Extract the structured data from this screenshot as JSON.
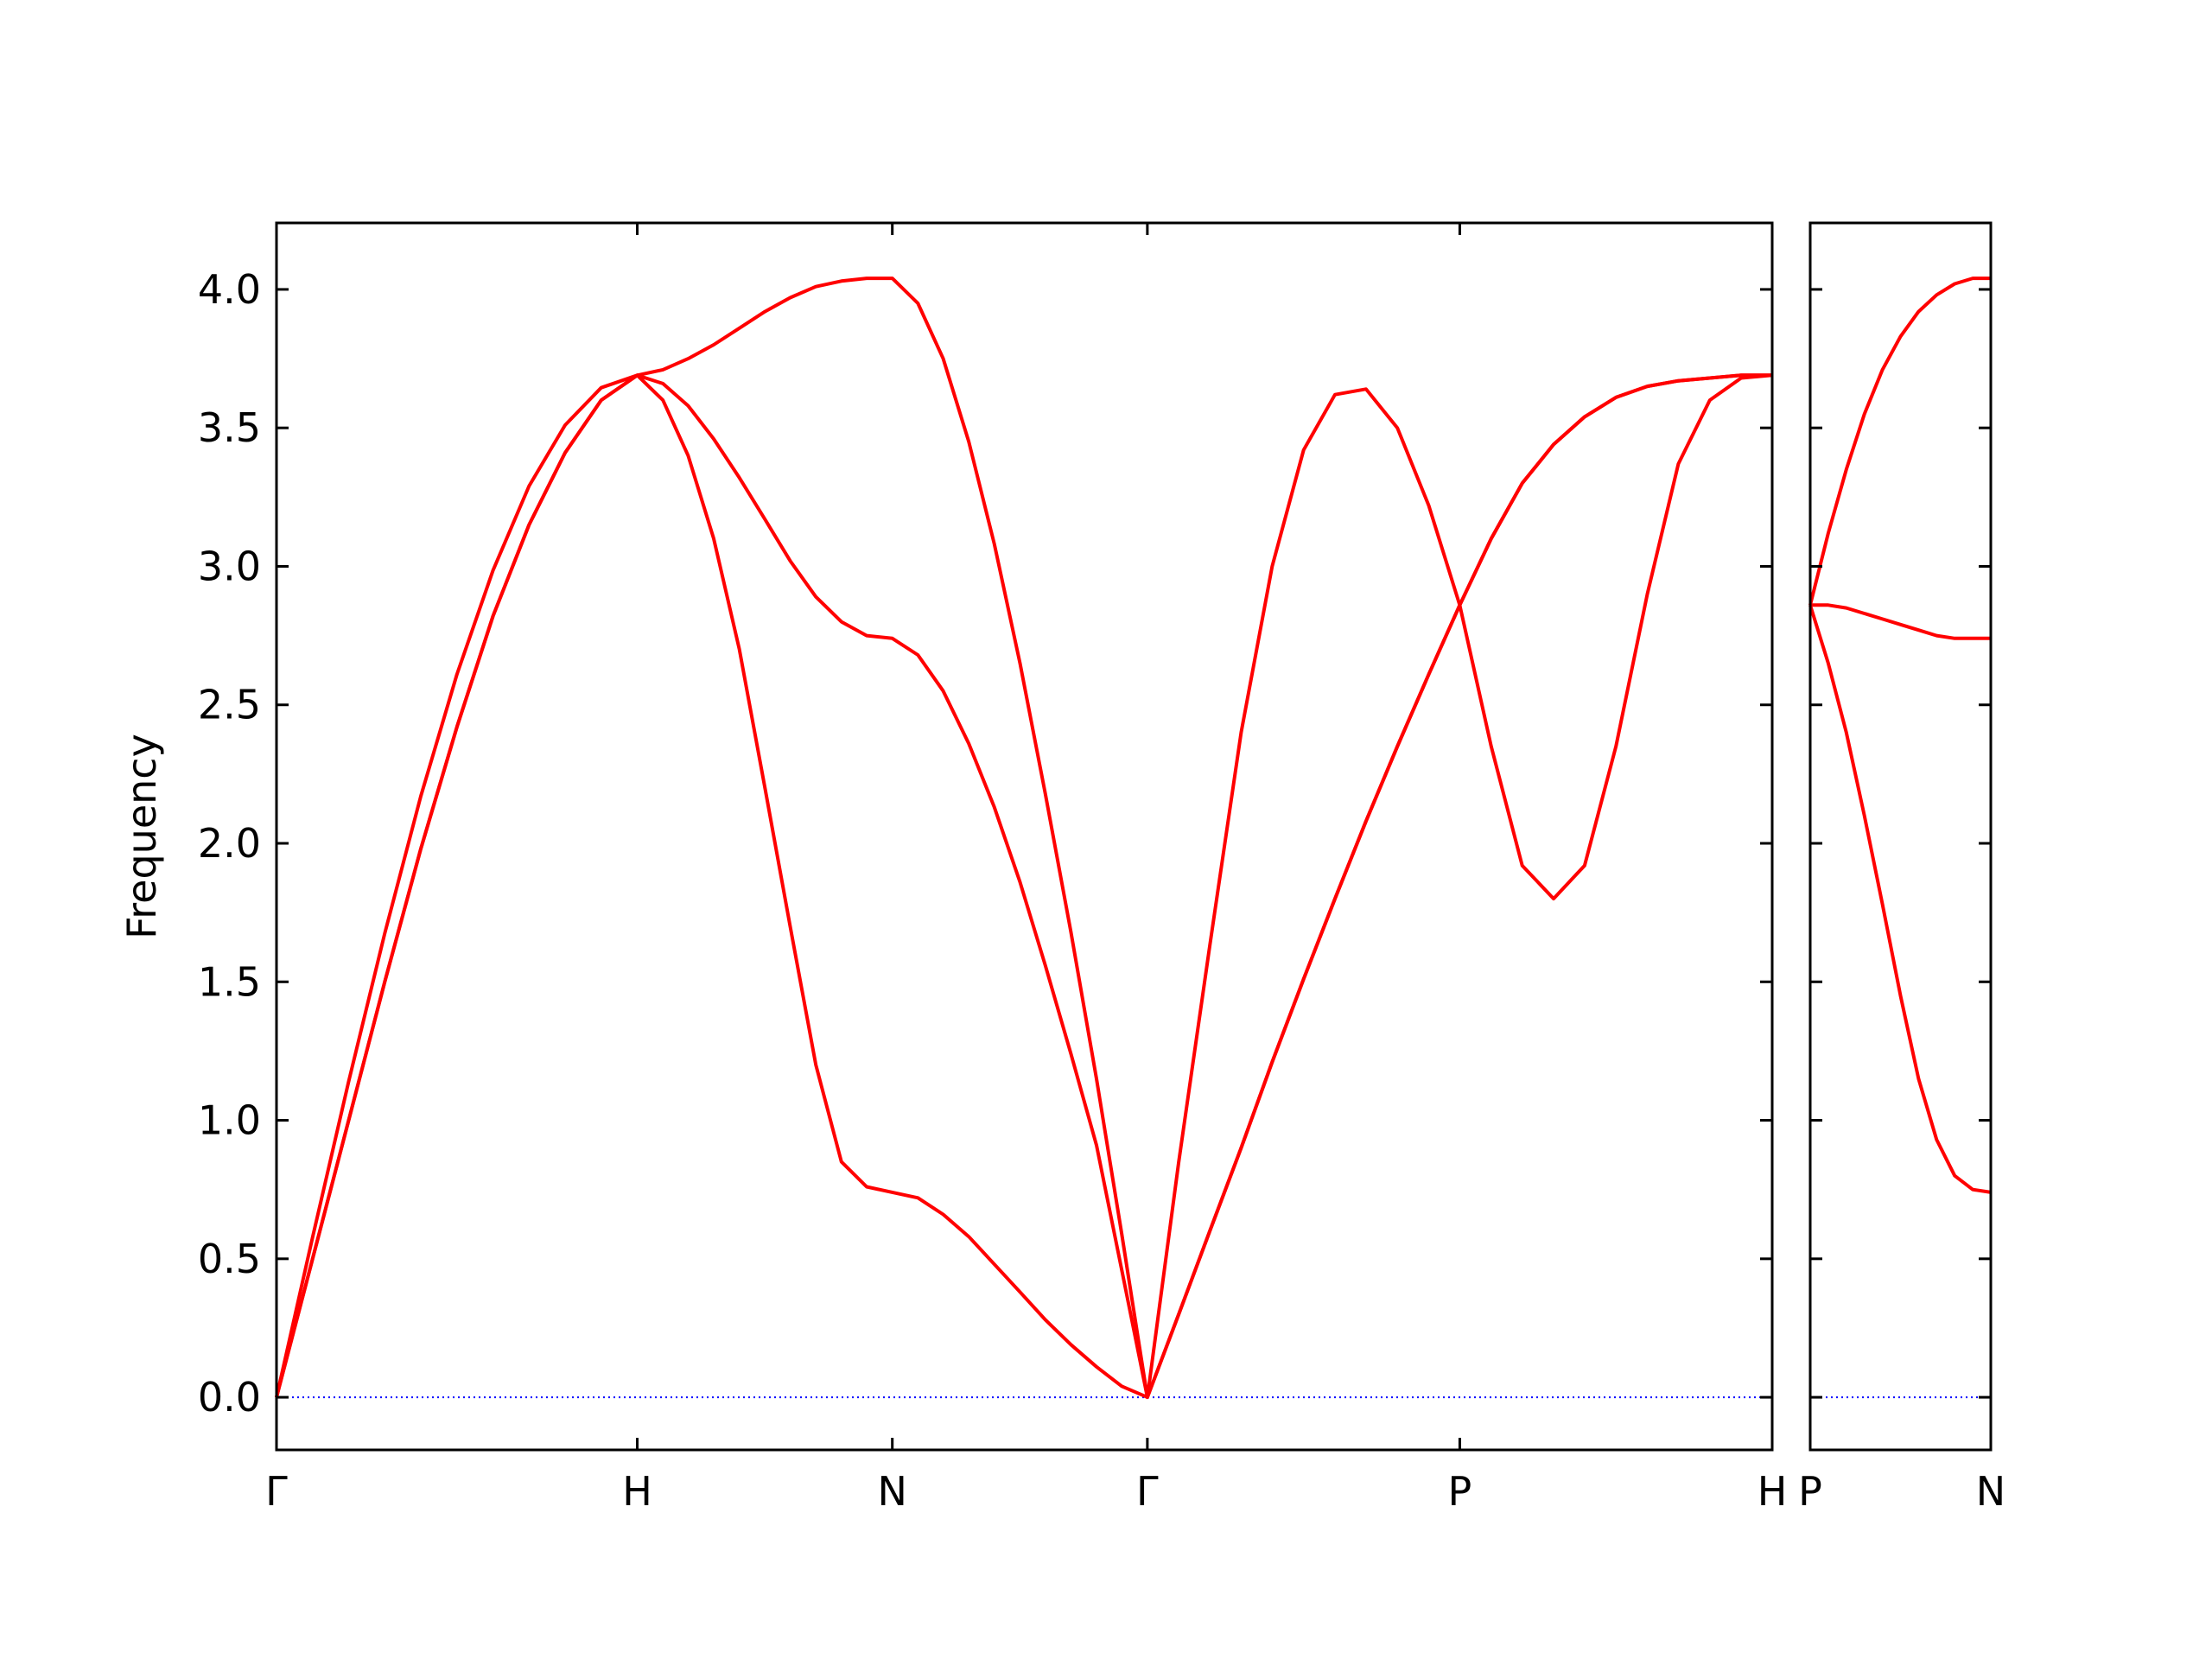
{
  "chart_data": [
    {
      "type": "line",
      "ylabel": "Frequency",
      "x": [
        0,
        0.1,
        0.2,
        0.3,
        0.4,
        0.5,
        0.6,
        0.7,
        0.8,
        0.9,
        1.0,
        1.071,
        1.141,
        1.212,
        1.283,
        1.354,
        1.424,
        1.495,
        1.566,
        1.636,
        1.707,
        1.778,
        1.848,
        1.919,
        1.99,
        2.061,
        2.131,
        2.202,
        2.273,
        2.343,
        2.414,
        2.501,
        2.587,
        2.674,
        2.76,
        2.847,
        2.934,
        3.02,
        3.107,
        3.194,
        3.28,
        3.367,
        3.453,
        3.54,
        3.626,
        3.713,
        3.8,
        3.886,
        3.973,
        4.06,
        4.146
      ],
      "series": [
        {
          "color": "#ff0000",
          "values": [
            0,
            0.5,
            1.0,
            1.5,
            1.98,
            2.42,
            2.82,
            3.15,
            3.41,
            3.6,
            3.69,
            3.6,
            3.4,
            3.1,
            2.7,
            2.2,
            1.7,
            1.2,
            0.85,
            0.76,
            0.74,
            0.72,
            0.66,
            0.58,
            0.48,
            0.38,
            0.28,
            0.19,
            0.11,
            0.04,
            0,
            0.3,
            0.6,
            0.9,
            1.21,
            1.51,
            1.8,
            2.08,
            2.35,
            2.61,
            2.86,
            3.1,
            3.3,
            3.44,
            3.54,
            3.61,
            3.65,
            3.67,
            3.68,
            3.69,
            3.69
          ]
        },
        {
          "color": "#ff0000",
          "values": [
            0,
            0.5,
            1.0,
            1.5,
            1.98,
            2.42,
            2.82,
            3.15,
            3.41,
            3.6,
            3.69,
            3.66,
            3.58,
            3.46,
            3.32,
            3.17,
            3.02,
            2.89,
            2.8,
            2.75,
            2.74,
            2.68,
            2.55,
            2.36,
            2.13,
            1.86,
            1.56,
            1.24,
            0.91,
            0.46,
            0,
            0.3,
            0.6,
            0.9,
            1.21,
            1.51,
            1.8,
            2.08,
            2.35,
            2.61,
            2.86,
            3.1,
            3.3,
            3.44,
            3.54,
            3.61,
            3.65,
            3.67,
            3.68,
            3.69,
            3.69
          ]
        },
        {
          "color": "#ff0000",
          "values": [
            0,
            0.578,
            1.14,
            1.675,
            2.17,
            2.61,
            2.985,
            3.29,
            3.51,
            3.645,
            3.69,
            3.71,
            3.75,
            3.8,
            3.86,
            3.92,
            3.97,
            4.01,
            4.03,
            4.04,
            4.04,
            3.95,
            3.75,
            3.45,
            3.08,
            2.65,
            2.18,
            1.68,
            1.15,
            0.59,
            0,
            0.85,
            1.63,
            2.4,
            3.0,
            3.42,
            3.62,
            3.64,
            3.5,
            3.22,
            2.86,
            2.35,
            1.92,
            1.8,
            1.92,
            2.35,
            2.9,
            3.37,
            3.6,
            3.68,
            3.69
          ]
        }
      ],
      "xlim": [
        0,
        4.146
      ],
      "xticks": [
        {
          "value": 0,
          "label": "Γ"
        },
        {
          "value": 1.0,
          "label": "H"
        },
        {
          "value": 1.707,
          "label": "N"
        },
        {
          "value": 2.414,
          "label": "Γ"
        },
        {
          "value": 3.28,
          "label": "P"
        },
        {
          "value": 4.146,
          "label": "H"
        }
      ],
      "ylim": [
        -0.19,
        4.24
      ],
      "yticks": [
        {
          "value": 0,
          "label": "0.0"
        },
        0.5,
        {
          "value": 1,
          "label": "1.0"
        },
        1.5,
        {
          "value": 2,
          "label": "2.0"
        },
        2.5,
        {
          "value": 3,
          "label": "3.0"
        },
        3.5,
        {
          "value": 4,
          "label": "4.0"
        }
      ],
      "ytick_labels": true,
      "hline": 0,
      "hline_color": "#0000ff"
    },
    {
      "type": "line",
      "x": [
        0,
        0.05,
        0.1,
        0.15,
        0.2,
        0.25,
        0.3,
        0.35,
        0.4,
        0.45,
        0.5
      ],
      "series": [
        {
          "color": "#ff0000",
          "values": [
            2.86,
            2.65,
            2.4,
            2.1,
            1.78,
            1.45,
            1.15,
            0.93,
            0.8,
            0.75,
            0.74
          ]
        },
        {
          "color": "#ff0000",
          "values": [
            2.86,
            2.86,
            2.85,
            2.83,
            2.81,
            2.79,
            2.77,
            2.75,
            2.74,
            2.74,
            2.74
          ]
        },
        {
          "color": "#ff0000",
          "values": [
            2.86,
            3.12,
            3.35,
            3.55,
            3.71,
            3.83,
            3.92,
            3.98,
            4.02,
            4.04,
            4.04
          ]
        }
      ],
      "xlim": [
        0,
        0.5
      ],
      "xticks": [
        {
          "value": 0,
          "label": "P"
        },
        {
          "value": 0.5,
          "label": "N"
        }
      ],
      "ylim": [
        -0.19,
        4.24
      ],
      "yticks": [
        0,
        0.5,
        1,
        1.5,
        2,
        2.5,
        3,
        3.5,
        4
      ],
      "ytick_labels": false,
      "hline": 0,
      "hline_color": "#0000ff"
    }
  ]
}
